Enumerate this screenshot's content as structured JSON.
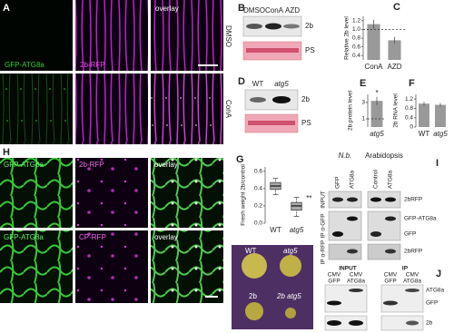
{
  "panels": {
    "A": {
      "label": "A",
      "channels": [
        "GFP-ATG8a",
        "2b-RFP",
        "overlay"
      ],
      "conditions": [
        "DMSO",
        "ConA"
      ]
    },
    "B": {
      "label": "B",
      "lanes": [
        "DMSO",
        "ConA",
        "AZD"
      ],
      "bands": [
        "2b",
        "PS"
      ]
    },
    "D": {
      "label": "D",
      "lanes": [
        "WT",
        "atg5"
      ],
      "bands": [
        "2b",
        "PS"
      ]
    },
    "H": {
      "label": "H",
      "rows": [
        [
          "GFP-ATG8a",
          "2b-RFP",
          "overlay"
        ],
        [
          "GFP-ATG8a",
          "CP-RFP",
          "overlay"
        ]
      ]
    },
    "photo": {
      "labels": [
        "WT",
        "atg5",
        "2b",
        "2b atg5"
      ]
    },
    "I": {
      "label": "I",
      "groups": [
        "N.b.",
        "Arabidopsis"
      ],
      "lanes": [
        "GFP",
        "ATG8a",
        "Control",
        "ATG8a"
      ],
      "rows": [
        "INPUT",
        "IP α-GFP",
        "IP α-RFP"
      ],
      "bands": [
        "2bRFP",
        "GFP-ATG8a",
        "GFP",
        "2bRFP"
      ]
    },
    "J": {
      "label": "J",
      "groups": [
        "INPUT",
        "IP"
      ],
      "lanes": [
        [
          "CMV",
          "GFP"
        ],
        [
          "CMV",
          "ATG8a"
        ],
        [
          "CMV",
          "GFP"
        ],
        [
          "CMV",
          "ATG8a"
        ]
      ],
      "bands": [
        "ATG8a",
        "GFP",
        "2b"
      ]
    }
  },
  "chart_data": [
    {
      "type": "bar",
      "label": "C",
      "y_label": "Relative 2b level",
      "categories": [
        "ConA",
        "AZD"
      ],
      "values": [
        1.12,
        0.75
      ],
      "errors": [
        0.1,
        0.08
      ],
      "color": "#999999",
      "ylim": [
        0.3,
        1.3
      ],
      "yticks": [
        0.4,
        0.6,
        0.8,
        {
          "value": 1,
          "label": "1.0"
        },
        1.2
      ],
      "reference_line": 1
    },
    {
      "type": "bar",
      "label": "E",
      "y_label": "2b protein level",
      "categories": [
        "atg5"
      ],
      "values": [
        3.2
      ],
      "errors": [
        0.5
      ],
      "color": "#999999",
      "ylim": [
        0,
        4
      ],
      "yticks": [
        1,
        3
      ],
      "reference_line": 1,
      "annotation": "*"
    },
    {
      "type": "bar",
      "label": "F",
      "y_label": "2b RNA level",
      "categories": [
        "WT",
        "atg5"
      ],
      "values": [
        1.0,
        0.95
      ],
      "errors": [
        0.08,
        0.08
      ],
      "color": "#999999",
      "ylim": [
        0,
        1.4
      ],
      "yticks": [
        0,
        0.4,
        0.8,
        1.2
      ]
    },
    {
      "type": "box",
      "label": "G",
      "y_label": "Fresh weight 2b/control",
      "categories": [
        "WT",
        "atg5"
      ],
      "whisker_low": [
        0.33,
        0.08
      ],
      "q1": [
        0.39,
        0.15
      ],
      "median": [
        0.43,
        0.2
      ],
      "q3": [
        0.47,
        0.24
      ],
      "whisker_high": [
        0.52,
        0.3
      ],
      "color": "#aaaaaa",
      "ylim": [
        0,
        0.65
      ],
      "yticks": [
        {
          "value": 0,
          "label": "0.0"
        },
        0.2,
        0.4,
        0.6
      ],
      "annotation": "**"
    }
  ]
}
